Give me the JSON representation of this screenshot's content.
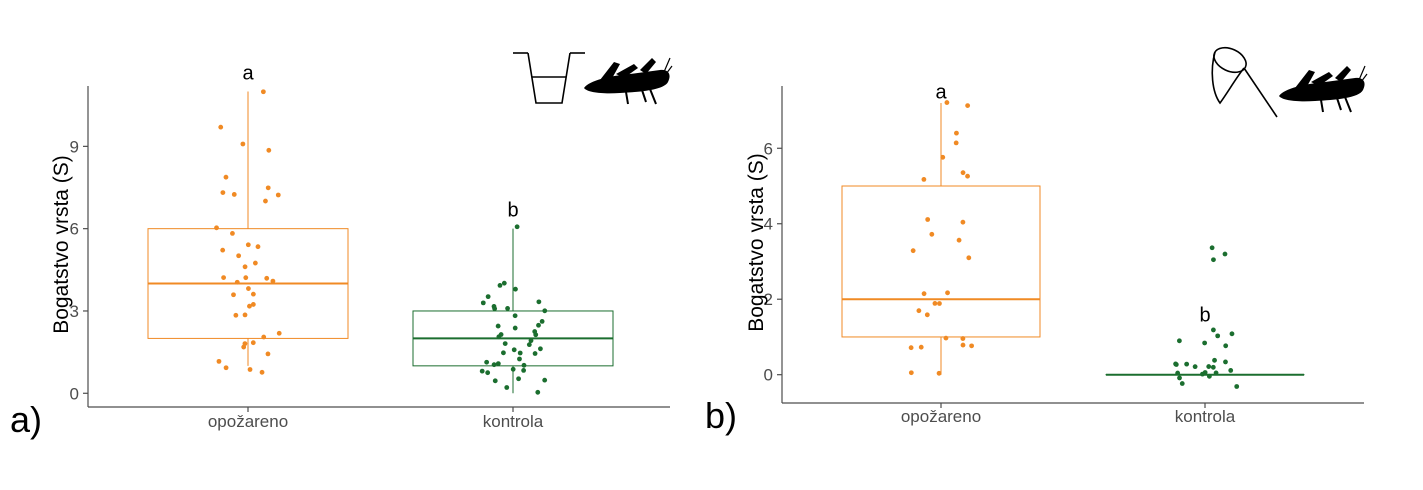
{
  "colors": {
    "burned": "#f08a24",
    "control": "#1b6e2f",
    "axis": "#4d4d4d"
  },
  "icons": {
    "panel_a": [
      "pitfall-trap-icon",
      "grasshopper-icon"
    ],
    "panel_b": [
      "sweep-net-icon",
      "grasshopper-icon"
    ]
  },
  "chart_data": [
    {
      "type": "box",
      "panel_label": "a)",
      "ylabel": "Bogatstvo vrsta (S)",
      "xlabel": "",
      "categories": [
        "opožareno",
        "kontrola"
      ],
      "ylim": [
        -0.5,
        11.2
      ],
      "yticks": [
        0,
        3,
        6,
        9
      ],
      "grid": false,
      "boxes": [
        {
          "name": "opožareno",
          "min": 1,
          "q1": 2,
          "median": 4,
          "q3": 6,
          "max": 11,
          "sig_letter": "a",
          "sig_y": 11.7
        },
        {
          "name": "kontrola",
          "min": 0,
          "q1": 1,
          "median": 2,
          "q3": 3,
          "max": 6,
          "sig_letter": "b",
          "sig_y": 6.7
        }
      ],
      "points": [
        [
          10.9,
          9.7,
          9.1,
          8.9,
          7.9,
          7.4,
          7.3,
          7.2,
          7.2,
          7,
          6,
          5.9,
          5.4,
          5.4,
          5.3,
          5,
          4.8,
          4.6,
          4.3,
          4.2,
          4.2,
          4.1,
          4,
          3.8,
          3.7,
          3.5,
          3.3,
          3.2,
          2.9,
          2.8,
          2.2,
          2,
          1.9,
          1.8,
          1.7,
          1.4,
          1.1,
          1,
          0.9,
          0.8
        ],
        [
          6.1,
          4.1,
          4,
          3.8,
          3.6,
          3.3,
          3.3,
          3.2,
          3.1,
          3,
          3,
          2.9,
          2.7,
          2.5,
          2.5,
          2.4,
          2.3,
          2.2,
          2.1,
          2,
          2,
          1.9,
          1.8,
          1.7,
          1.6,
          1.5,
          1.5,
          1.4,
          1.3,
          1.2,
          1.1,
          1,
          1,
          0.9,
          0.8,
          0.8,
          0.7,
          0.6,
          0.5,
          0.4,
          0.2,
          0.1
        ]
      ]
    },
    {
      "type": "box",
      "panel_label": "b)",
      "ylabel": "Bogatstvo vrsta (S)",
      "xlabel": "",
      "categories": [
        "opožareno",
        "kontrola"
      ],
      "ylim": [
        -0.75,
        7.65
      ],
      "yticks": [
        0,
        2,
        4,
        6
      ],
      "grid": false,
      "boxes": [
        {
          "name": "opožareno",
          "min": 0,
          "q1": 1,
          "median": 2,
          "q3": 5,
          "max": 7.2,
          "sig_letter": "a",
          "sig_y": 7.5
        },
        {
          "name": "kontrola",
          "min": 0,
          "q1": 0,
          "median": 0,
          "q3": 0,
          "max": 0,
          "sig_letter": "b",
          "sig_y": 1.6
        }
      ],
      "points": [
        [
          7.2,
          7.1,
          6.4,
          6.2,
          5.7,
          5.3,
          5.2,
          5.2,
          4.1,
          4,
          3.7,
          3.5,
          3.3,
          3.1,
          2.2,
          2.1,
          1.9,
          1.9,
          1.7,
          1.6,
          1,
          0.9,
          0.8,
          0.7,
          0.7,
          0.7,
          0.1,
          0.05
        ],
        [
          3.3,
          3.2,
          3.0,
          1.2,
          1.1,
          1.0,
          0.9,
          0.9,
          0.8,
          0.4,
          0.4,
          0.3,
          0.3,
          0.3,
          0.2,
          0.2,
          0.2,
          0.1,
          0.1,
          0.1,
          0.05,
          0,
          0,
          -0.1,
          -0.2,
          -0.3
        ]
      ]
    }
  ]
}
